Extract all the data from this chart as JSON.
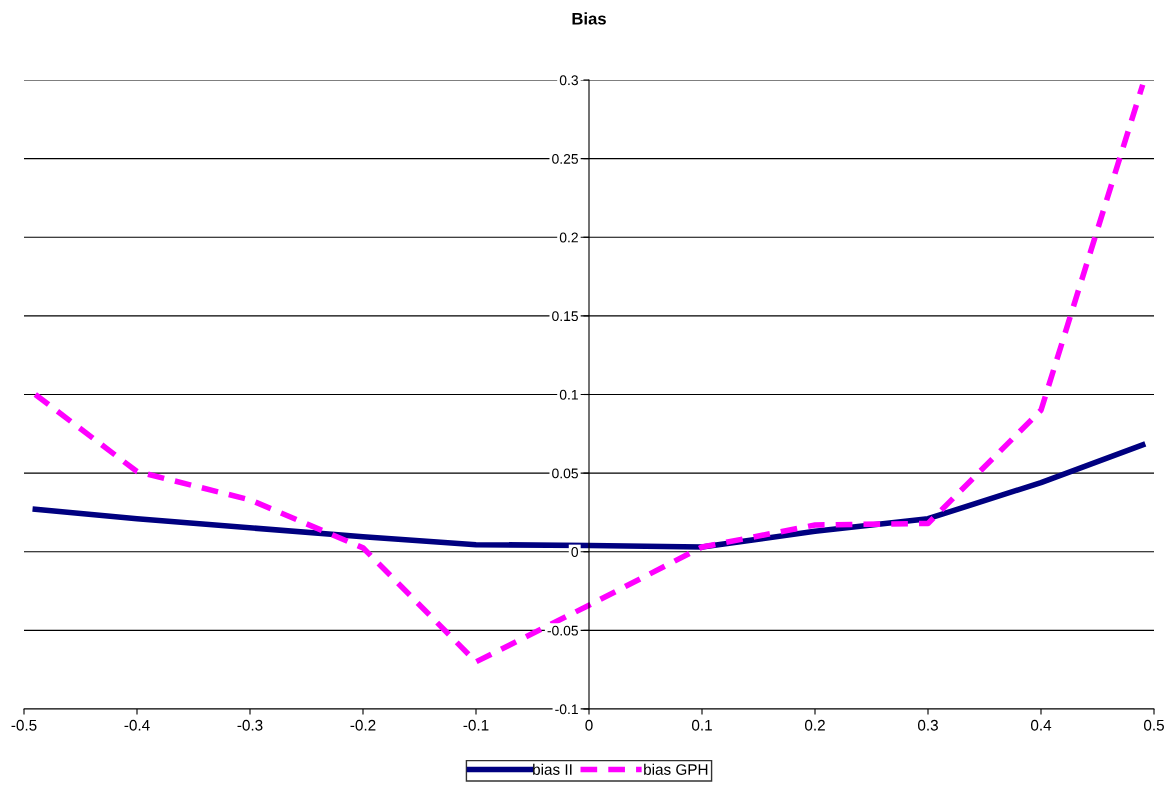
{
  "chart_data": {
    "type": "line",
    "title": "Bias",
    "xlim": [
      -0.5,
      0.5
    ],
    "xticks": [
      -0.5,
      -0.4,
      -0.3,
      -0.2,
      -0.1,
      0,
      0.1,
      0.2,
      0.3,
      0.4,
      0.5
    ],
    "ylim": [
      -0.1,
      0.3
    ],
    "yticks": [
      -0.1,
      -0.05,
      0,
      0.05,
      0.1,
      0.15,
      0.2,
      0.25,
      0.3
    ],
    "grid": "y",
    "legend": "bottom",
    "marker": "none",
    "series": [
      {
        "name": "bias II",
        "color": "#000080",
        "line_style": "solid",
        "x": [
          -0.49,
          -0.4,
          -0.2,
          -0.1,
          0,
          0.1,
          0.2,
          0.3,
          0.4,
          0.49
        ],
        "values": [
          0.027,
          0.021,
          0.0095,
          0.0045,
          0.004,
          0.003,
          0.013,
          0.021,
          0.044,
          0.068
        ]
      },
      {
        "name": "bias GPH",
        "color": "#ff00ff",
        "line_style": "dashed",
        "x": [
          -0.49,
          -0.4,
          -0.3,
          -0.2,
          -0.1,
          0,
          0.1,
          0.2,
          0.3,
          0.4,
          0.49
        ],
        "values": [
          0.1,
          0.051,
          0.033,
          0.0025,
          -0.07,
          -0.034,
          0.003,
          0.017,
          0.018,
          0.09,
          0.297
        ]
      }
    ]
  }
}
